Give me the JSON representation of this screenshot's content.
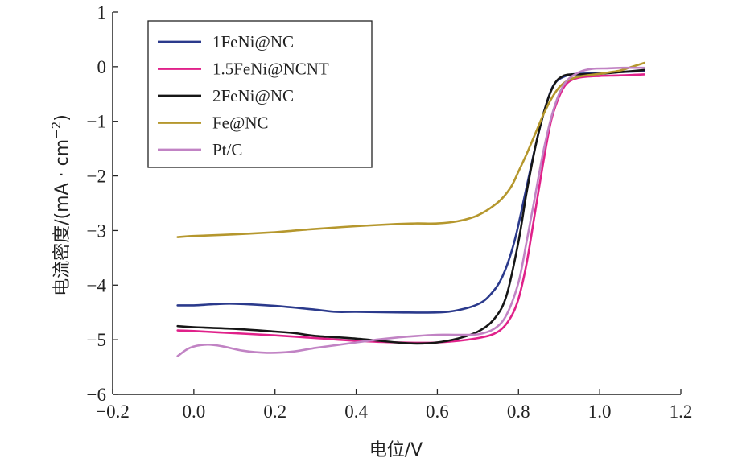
{
  "chart_data": {
    "type": "line",
    "xlabel": "电位/V",
    "ylabel_main": "电流密度/(mA · cm",
    "ylabel_sup": "−2",
    "ylabel_close": ")",
    "xlim": [
      -0.2,
      1.2
    ],
    "ylim": [
      -6,
      1
    ],
    "xticks": [
      -0.2,
      0.0,
      0.2,
      0.4,
      0.6,
      0.8,
      1.0,
      1.2
    ],
    "xtick_labels": [
      "−0.2",
      "0.0",
      "0.2",
      "0.4",
      "0.6",
      "0.8",
      "1.0",
      "1.2"
    ],
    "yticks": [
      1,
      0,
      -1,
      -2,
      -3,
      -4,
      -5,
      -6
    ],
    "ytick_labels": [
      "1",
      "0",
      "−1",
      "−2",
      "−3",
      "−4",
      "−5",
      "−6"
    ],
    "grid": false,
    "legend_position": "top-left",
    "series": [
      {
        "name": "1FeNi@NC",
        "color": "#2b3a8c",
        "points": [
          [
            -0.04,
            -4.37
          ],
          [
            0.0,
            -4.37
          ],
          [
            0.05,
            -4.35
          ],
          [
            0.1,
            -4.34
          ],
          [
            0.2,
            -4.38
          ],
          [
            0.3,
            -4.45
          ],
          [
            0.35,
            -4.49
          ],
          [
            0.4,
            -4.49
          ],
          [
            0.5,
            -4.5
          ],
          [
            0.6,
            -4.5
          ],
          [
            0.65,
            -4.46
          ],
          [
            0.7,
            -4.35
          ],
          [
            0.73,
            -4.18
          ],
          [
            0.76,
            -3.85
          ],
          [
            0.79,
            -3.2
          ],
          [
            0.82,
            -2.2
          ],
          [
            0.845,
            -1.35
          ],
          [
            0.87,
            -0.65
          ],
          [
            0.89,
            -0.3
          ],
          [
            0.92,
            -0.16
          ],
          [
            0.95,
            -0.13
          ],
          [
            1.0,
            -0.12
          ],
          [
            1.05,
            -0.1
          ],
          [
            1.11,
            -0.08
          ]
        ]
      },
      {
        "name": "1.5FeNi@NCNT",
        "color": "#e0218a",
        "points": [
          [
            -0.04,
            -4.83
          ],
          [
            0.0,
            -4.84
          ],
          [
            0.1,
            -4.88
          ],
          [
            0.2,
            -4.92
          ],
          [
            0.3,
            -4.97
          ],
          [
            0.4,
            -5.02
          ],
          [
            0.5,
            -5.05
          ],
          [
            0.6,
            -5.05
          ],
          [
            0.7,
            -4.97
          ],
          [
            0.75,
            -4.85
          ],
          [
            0.78,
            -4.6
          ],
          [
            0.8,
            -4.25
          ],
          [
            0.82,
            -3.6
          ],
          [
            0.84,
            -2.7
          ],
          [
            0.86,
            -1.8
          ],
          [
            0.88,
            -1.0
          ],
          [
            0.9,
            -0.55
          ],
          [
            0.92,
            -0.3
          ],
          [
            0.95,
            -0.2
          ],
          [
            1.0,
            -0.17
          ],
          [
            1.05,
            -0.16
          ],
          [
            1.11,
            -0.14
          ]
        ]
      },
      {
        "name": "2FeNi@NC",
        "color": "#161616",
        "points": [
          [
            -0.04,
            -4.75
          ],
          [
            0.0,
            -4.77
          ],
          [
            0.1,
            -4.8
          ],
          [
            0.2,
            -4.85
          ],
          [
            0.25,
            -4.88
          ],
          [
            0.3,
            -4.93
          ],
          [
            0.4,
            -4.98
          ],
          [
            0.5,
            -5.05
          ],
          [
            0.55,
            -5.07
          ],
          [
            0.6,
            -5.05
          ],
          [
            0.65,
            -4.98
          ],
          [
            0.7,
            -4.85
          ],
          [
            0.74,
            -4.62
          ],
          [
            0.77,
            -4.2
          ],
          [
            0.8,
            -3.2
          ],
          [
            0.82,
            -2.3
          ],
          [
            0.845,
            -1.35
          ],
          [
            0.87,
            -0.65
          ],
          [
            0.89,
            -0.3
          ],
          [
            0.91,
            -0.17
          ],
          [
            0.93,
            -0.14
          ],
          [
            0.95,
            -0.14
          ],
          [
            1.0,
            -0.13
          ],
          [
            1.05,
            -0.1
          ],
          [
            1.11,
            -0.06
          ]
        ]
      },
      {
        "name": "Fe@NC",
        "color": "#b5972d",
        "points": [
          [
            -0.04,
            -3.12
          ],
          [
            0.0,
            -3.1
          ],
          [
            0.1,
            -3.07
          ],
          [
            0.2,
            -3.03
          ],
          [
            0.25,
            -3.0
          ],
          [
            0.3,
            -2.97
          ],
          [
            0.4,
            -2.92
          ],
          [
            0.5,
            -2.88
          ],
          [
            0.55,
            -2.87
          ],
          [
            0.6,
            -2.87
          ],
          [
            0.65,
            -2.83
          ],
          [
            0.7,
            -2.72
          ],
          [
            0.75,
            -2.48
          ],
          [
            0.78,
            -2.22
          ],
          [
            0.8,
            -1.92
          ],
          [
            0.82,
            -1.6
          ],
          [
            0.84,
            -1.25
          ],
          [
            0.86,
            -0.9
          ],
          [
            0.88,
            -0.6
          ],
          [
            0.9,
            -0.38
          ],
          [
            0.92,
            -0.26
          ],
          [
            0.95,
            -0.18
          ],
          [
            1.0,
            -0.13
          ],
          [
            1.05,
            -0.07
          ],
          [
            1.08,
            0.0
          ],
          [
            1.11,
            0.07
          ]
        ]
      },
      {
        "name": "Pt/C",
        "color": "#c183c4",
        "points": [
          [
            -0.04,
            -5.3
          ],
          [
            -0.01,
            -5.15
          ],
          [
            0.03,
            -5.09
          ],
          [
            0.07,
            -5.12
          ],
          [
            0.12,
            -5.2
          ],
          [
            0.18,
            -5.24
          ],
          [
            0.24,
            -5.22
          ],
          [
            0.3,
            -5.15
          ],
          [
            0.35,
            -5.1
          ],
          [
            0.4,
            -5.05
          ],
          [
            0.45,
            -5.0
          ],
          [
            0.5,
            -4.96
          ],
          [
            0.55,
            -4.93
          ],
          [
            0.6,
            -4.91
          ],
          [
            0.65,
            -4.91
          ],
          [
            0.7,
            -4.9
          ],
          [
            0.74,
            -4.8
          ],
          [
            0.77,
            -4.55
          ],
          [
            0.8,
            -3.95
          ],
          [
            0.82,
            -3.2
          ],
          [
            0.84,
            -2.4
          ],
          [
            0.86,
            -1.6
          ],
          [
            0.88,
            -0.95
          ],
          [
            0.9,
            -0.5
          ],
          [
            0.92,
            -0.25
          ],
          [
            0.95,
            -0.1
          ],
          [
            0.98,
            -0.04
          ],
          [
            1.02,
            -0.03
          ],
          [
            1.06,
            -0.02
          ],
          [
            1.11,
            -0.02
          ]
        ]
      }
    ]
  }
}
